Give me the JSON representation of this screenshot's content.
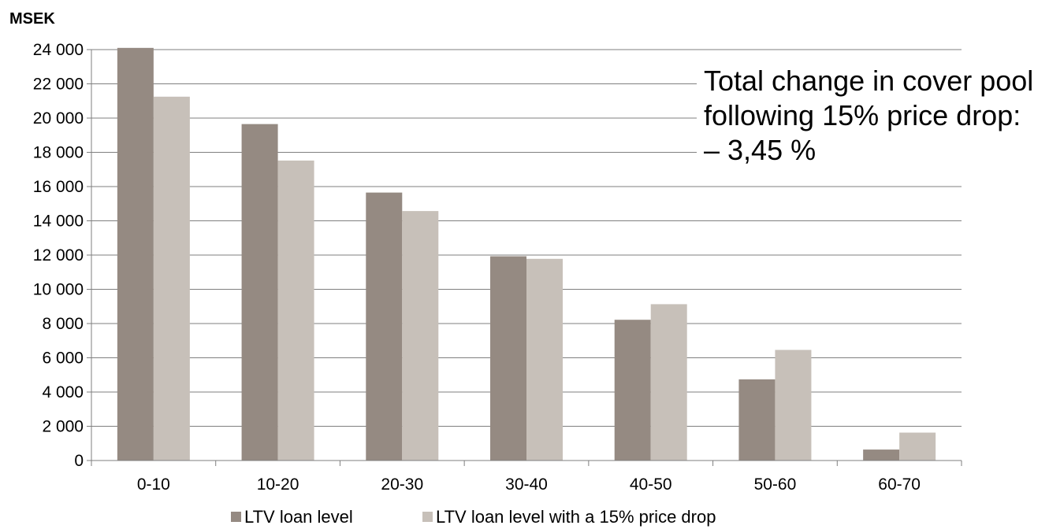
{
  "chart_data": {
    "type": "bar",
    "unit_label": "MSEK",
    "categories": [
      "0-10",
      "10-20",
      "20-30",
      "30-40",
      "40-50",
      "50-60",
      "60-70"
    ],
    "series": [
      {
        "name": "LTV loan level",
        "color": "#958a82",
        "values": [
          24100,
          19650,
          15650,
          11930,
          8220,
          4740,
          640
        ]
      },
      {
        "name": "LTV loan level with a 15% price drop",
        "color": "#c7c0b9",
        "values": [
          21250,
          17520,
          14570,
          11780,
          9130,
          6460,
          1630
        ]
      }
    ],
    "ylim": [
      0,
      24000
    ],
    "y_ticks": [
      0,
      2000,
      4000,
      6000,
      8000,
      10000,
      12000,
      14000,
      16000,
      18000,
      20000,
      22000,
      24000
    ],
    "y_tick_labels": [
      "0",
      "2 000",
      "4 000",
      "6 000",
      "8 000",
      "10 000",
      "12 000",
      "14 000",
      "16 000",
      "18 000",
      "20 000",
      "22 000",
      "24 000"
    ],
    "grid": true,
    "legend_position": "bottom",
    "annotation": [
      "Total change in cover pool",
      "following 15% price drop:",
      "– 3,45 %"
    ]
  }
}
